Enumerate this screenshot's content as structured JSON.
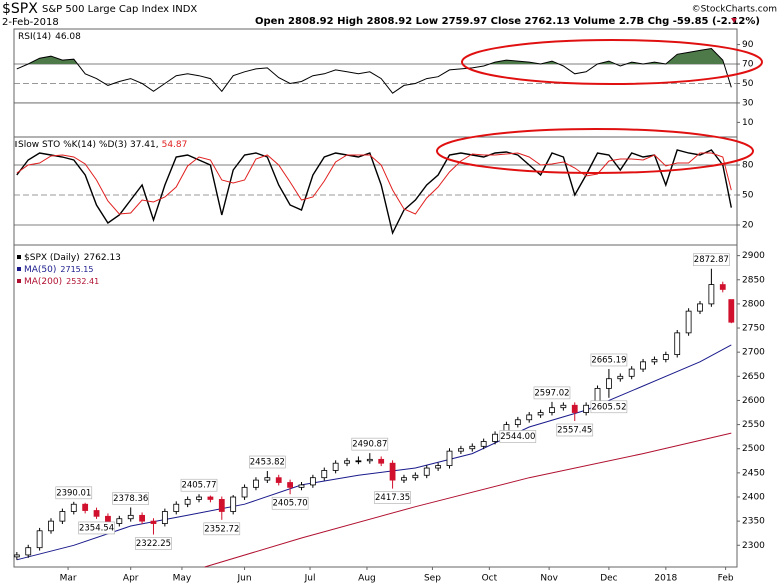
{
  "header": {
    "symbol": "$SPX",
    "name": "S&P 500 Large Cap Index INDX",
    "date": "2-Feb-2018",
    "quote": "Open 2808.92 High 2808.92 Low 2759.97 Close 2762.13 Volume 2.7B Chg -59.85 (-2.12%)",
    "credit": "©StockCharts.com"
  },
  "chart_data": [
    {
      "type": "line",
      "x": [
        0,
        4,
        8,
        12,
        16,
        20,
        24,
        28,
        32,
        36,
        40,
        44,
        48,
        52,
        56,
        60,
        64,
        68,
        72,
        76,
        80,
        84,
        88,
        92,
        96,
        100,
        104,
        108,
        112,
        116,
        120,
        124,
        128,
        132,
        136,
        140,
        144,
        148,
        152,
        156,
        160,
        164,
        168,
        172,
        176,
        180,
        184,
        188,
        192,
        196,
        200,
        204,
        208,
        212,
        216,
        220,
        224,
        228,
        232,
        236,
        240,
        244,
        248,
        251
      ],
      "xlim": [
        -1,
        253
      ],
      "ylim": [
        -5,
        106
      ],
      "yticks": [
        90,
        70,
        50,
        30,
        10
      ],
      "hlines": [
        70,
        30
      ],
      "dashed_hlines": [
        50
      ],
      "fill_above": 70,
      "fill_color": "#4e7a4a",
      "series": [
        {
          "name": "RSI(14)",
          "color": "#000000",
          "values": [
            65,
            70,
            76,
            78,
            74,
            75,
            60,
            55,
            48,
            52,
            55,
            50,
            42,
            50,
            58,
            60,
            58,
            55,
            42,
            58,
            62,
            65,
            66,
            56,
            50,
            52,
            58,
            60,
            64,
            62,
            60,
            62,
            55,
            40,
            48,
            50,
            55,
            57,
            64,
            65,
            66,
            68,
            72,
            74,
            73,
            72,
            70,
            73,
            68,
            60,
            62,
            70,
            73,
            68,
            72,
            70,
            72,
            70,
            80,
            82,
            84,
            86,
            74,
            46.08
          ]
        }
      ]
    },
    {
      "type": "line",
      "x": [
        0,
        4,
        8,
        12,
        16,
        20,
        24,
        28,
        32,
        36,
        40,
        44,
        48,
        52,
        56,
        60,
        64,
        68,
        72,
        76,
        80,
        84,
        88,
        92,
        96,
        100,
        104,
        108,
        112,
        116,
        120,
        124,
        128,
        132,
        136,
        140,
        144,
        148,
        152,
        156,
        160,
        164,
        168,
        172,
        176,
        180,
        184,
        188,
        192,
        196,
        200,
        204,
        208,
        212,
        216,
        220,
        224,
        228,
        232,
        236,
        240,
        244,
        248,
        251
      ],
      "xlim": [
        -1,
        253
      ],
      "ylim": [
        0,
        108
      ],
      "yticks": [
        80,
        50,
        20
      ],
      "hlines": [
        80,
        20
      ],
      "dashed_hlines": [
        50
      ],
      "legend": [
        "Slow STO %K(14) %D(3) 37.41,",
        54.87
      ],
      "series": [
        {
          "name": "%K(14)",
          "color": "#000000",
          "values": [
            70,
            85,
            92,
            90,
            88,
            85,
            70,
            40,
            22,
            30,
            45,
            60,
            25,
            60,
            88,
            90,
            85,
            80,
            30,
            75,
            90,
            92,
            88,
            60,
            40,
            35,
            70,
            88,
            92,
            90,
            88,
            92,
            60,
            12,
            35,
            45,
            60,
            70,
            90,
            92,
            90,
            88,
            92,
            93,
            90,
            80,
            70,
            92,
            88,
            50,
            70,
            92,
            90,
            75,
            92,
            88,
            90,
            60,
            95,
            92,
            90,
            95,
            80,
            37.41
          ]
        },
        {
          "name": "%D(3)",
          "color": "#e02020",
          "values": [
            72,
            80,
            82,
            89,
            90,
            88,
            81,
            65,
            44,
            31,
            32,
            45,
            43,
            48,
            58,
            79,
            88,
            85,
            65,
            62,
            65,
            86,
            90,
            80,
            63,
            45,
            48,
            64,
            83,
            90,
            90,
            90,
            80,
            55,
            36,
            31,
            47,
            58,
            73,
            84,
            91,
            90,
            90,
            91,
            92,
            88,
            80,
            81,
            83,
            77,
            69,
            71,
            84,
            86,
            86,
            85,
            90,
            79,
            82,
            82,
            92,
            92,
            88,
            54.87
          ]
        }
      ]
    },
    {
      "type": "candlestick",
      "name": "$SPX (Daily)",
      "color": "#000000",
      "down_color": "#d0102c",
      "x": [
        0,
        4,
        8,
        12,
        16,
        20,
        24,
        28,
        32,
        36,
        40,
        44,
        48,
        52,
        56,
        60,
        64,
        68,
        72,
        76,
        80,
        84,
        88,
        92,
        96,
        100,
        104,
        108,
        112,
        116,
        120,
        124,
        128,
        132,
        136,
        140,
        144,
        148,
        152,
        156,
        160,
        164,
        168,
        172,
        176,
        180,
        184,
        188,
        192,
        196,
        200,
        204,
        208,
        212,
        216,
        220,
        224,
        228,
        232,
        236,
        240,
        244,
        248,
        251
      ],
      "open": [
        2276,
        2280,
        2295,
        2330,
        2350,
        2370,
        2385,
        2372,
        2360,
        2345,
        2355,
        2362,
        2350,
        2345,
        2370,
        2385,
        2395,
        2400,
        2395,
        2370,
        2400,
        2420,
        2435,
        2440,
        2430,
        2420,
        2425,
        2440,
        2455,
        2470,
        2475,
        2475,
        2478,
        2470,
        2435,
        2440,
        2445,
        2460,
        2465,
        2495,
        2500,
        2505,
        2515,
        2530,
        2550,
        2560,
        2570,
        2575,
        2585,
        2590,
        2575,
        2590,
        2625,
        2645,
        2650,
        2665,
        2680,
        2685,
        2695,
        2740,
        2785,
        2800,
        2840,
        2808.92
      ],
      "high": [
        2286,
        2301,
        2336,
        2356,
        2376,
        2390.01,
        2388,
        2378,
        2366,
        2361,
        2378.36,
        2368,
        2356,
        2376,
        2391,
        2401,
        2405.77,
        2403,
        2401,
        2404,
        2426,
        2441,
        2453.82,
        2446,
        2436,
        2431,
        2446,
        2461,
        2476,
        2481,
        2484,
        2490.87,
        2484,
        2476,
        2446,
        2451,
        2466,
        2471,
        2501,
        2506,
        2511,
        2521,
        2536,
        2556,
        2566,
        2576,
        2581,
        2597.02,
        2596,
        2596,
        2596,
        2631,
        2665.19,
        2656,
        2671,
        2686,
        2691,
        2701,
        2746,
        2791,
        2806,
        2872.87,
        2846,
        2808.92
      ],
      "low": [
        2270,
        2274,
        2289,
        2324,
        2344,
        2364,
        2366,
        2354.54,
        2339,
        2339,
        2349,
        2344,
        2322.25,
        2339,
        2364,
        2379,
        2389,
        2389,
        2352.72,
        2364,
        2394,
        2414,
        2429,
        2424,
        2405.7,
        2414,
        2419,
        2434,
        2449,
        2464,
        2468,
        2469,
        2464,
        2417.35,
        2429,
        2434,
        2439,
        2454,
        2459,
        2489,
        2494,
        2499,
        2509,
        2524,
        2544,
        2554,
        2564,
        2569,
        2579,
        2557.45,
        2569,
        2584,
        2605.52,
        2639,
        2644,
        2659,
        2674,
        2679,
        2689,
        2734,
        2779,
        2794,
        2824,
        2759.97
      ],
      "close": [
        2280,
        2295,
        2330,
        2350,
        2370,
        2385,
        2372,
        2360,
        2345,
        2355,
        2362,
        2350,
        2345,
        2370,
        2385,
        2395,
        2400,
        2395,
        2370,
        2400,
        2420,
        2435,
        2440,
        2430,
        2420,
        2425,
        2440,
        2455,
        2470,
        2475,
        2475,
        2478,
        2470,
        2435,
        2440,
        2445,
        2460,
        2465,
        2495,
        2500,
        2505,
        2515,
        2530,
        2550,
        2560,
        2570,
        2575,
        2585,
        2590,
        2575,
        2590,
        2625,
        2645,
        2650,
        2665,
        2680,
        2685,
        2695,
        2740,
        2785,
        2800,
        2840,
        2830,
        2762.13
      ],
      "high_labels": [
        2390.01,
        2378.36,
        2405.77,
        2453.82,
        2490.87,
        2597.02,
        2665.19,
        2872.87
      ],
      "low_labels": [
        2354.54,
        2322.25,
        2352.72,
        {
          "value": 2405.7,
          "label": "2405.70"
        },
        2417.35,
        {
          "value": 2544,
          "label": "2544.00"
        },
        2557.45,
        2605.52
      ],
      "overlays": [
        {
          "name": "MA(50)",
          "color": "#1a1a8c",
          "x": [
            0,
            20,
            40,
            60,
            80,
            100,
            120,
            140,
            160,
            180,
            200,
            220,
            240,
            251
          ],
          "values": [
            2270,
            2300,
            2340,
            2362,
            2385,
            2425,
            2445,
            2460,
            2490,
            2545,
            2580,
            2630,
            2680,
            2715.15
          ]
        },
        {
          "name": "MA(200)",
          "color": "#b01030",
          "x": [
            66,
            100,
            140,
            180,
            220,
            251
          ],
          "values": [
            2255,
            2315,
            2380,
            2440,
            2490,
            2532.41
          ]
        }
      ],
      "xlim": [
        -1,
        253
      ],
      "ylim": [
        2255,
        2922
      ],
      "yticks": [
        2300,
        2350,
        2400,
        2450,
        2500,
        2550,
        2600,
        2650,
        2700,
        2750,
        2800,
        2850,
        2900
      ],
      "xticks": [
        {
          "value": 18,
          "label": "Mar"
        },
        {
          "value": 40,
          "label": "Apr"
        },
        {
          "value": 58,
          "label": "May"
        },
        {
          "value": 80,
          "label": "Jun"
        },
        {
          "value": 103,
          "label": "Jul"
        },
        {
          "value": 123,
          "label": "Aug"
        },
        {
          "value": 146,
          "label": "Sep"
        },
        {
          "value": 166,
          "label": "Oct"
        },
        {
          "value": 187,
          "label": "Nov"
        },
        {
          "value": 208,
          "label": "Dec"
        },
        {
          "value": 228,
          "label": "2018"
        },
        {
          "value": 249,
          "label": "Feb"
        }
      ]
    }
  ]
}
